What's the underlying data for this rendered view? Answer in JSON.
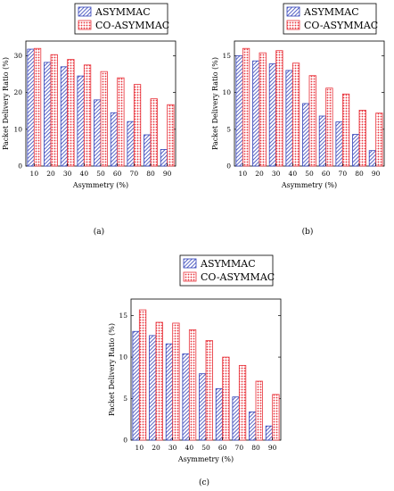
{
  "colors": {
    "series_a": "#2f3fb8",
    "series_b": "#e8323a"
  },
  "chart_data": [
    {
      "type": "bar",
      "panel_label": "(a)",
      "xlabel": "Asymmetry (%)",
      "ylabel": "Packet Delivery Ratio (%)",
      "categories": [
        "10",
        "20",
        "30",
        "40",
        "50",
        "60",
        "70",
        "80",
        "90"
      ],
      "ylim": [
        0,
        34
      ],
      "yticks": [
        0,
        10,
        20,
        30
      ],
      "legend_position": "top-center",
      "series": [
        {
          "name": "ASYMMAC",
          "values": [
            31.8,
            28.2,
            27.0,
            24.5,
            18.0,
            14.5,
            12.1,
            8.5,
            4.5
          ]
        },
        {
          "name": "CO-ASYMMAC",
          "values": [
            32.0,
            30.3,
            29.0,
            27.5,
            25.7,
            24.0,
            22.2,
            18.3,
            16.7
          ]
        }
      ]
    },
    {
      "type": "bar",
      "panel_label": "(b)",
      "xlabel": "Asymmetry (%)",
      "ylabel": "Packet Delivery Ratio (%)",
      "categories": [
        "10",
        "20",
        "30",
        "40",
        "50",
        "60",
        "70",
        "80",
        "90"
      ],
      "ylim": [
        0,
        17
      ],
      "yticks": [
        0,
        5,
        10,
        15
      ],
      "legend_position": "top-center",
      "series": [
        {
          "name": "ASYMMAC",
          "values": [
            15.0,
            14.3,
            13.9,
            13.0,
            8.5,
            6.8,
            6.0,
            4.3,
            2.1
          ]
        },
        {
          "name": "CO-ASYMMAC",
          "values": [
            16.0,
            15.4,
            15.7,
            14.0,
            12.3,
            10.6,
            9.8,
            7.6,
            7.2
          ]
        }
      ]
    },
    {
      "type": "bar",
      "panel_label": "(c)",
      "xlabel": "Asymmetry (%)",
      "ylabel": "Packet Delivery Ratio (%)",
      "categories": [
        "10",
        "20",
        "30",
        "40",
        "50",
        "60",
        "70",
        "80",
        "90"
      ],
      "ylim": [
        0,
        17
      ],
      "yticks": [
        0,
        5,
        10,
        15
      ],
      "legend_position": "top-center",
      "series": [
        {
          "name": "ASYMMAC",
          "values": [
            13.1,
            12.6,
            11.6,
            10.4,
            8.0,
            6.2,
            5.2,
            3.4,
            1.7
          ]
        },
        {
          "name": "CO-ASYMMAC",
          "values": [
            15.7,
            14.2,
            14.1,
            13.3,
            12.0,
            10.0,
            9.0,
            7.1,
            5.5
          ]
        }
      ]
    }
  ]
}
